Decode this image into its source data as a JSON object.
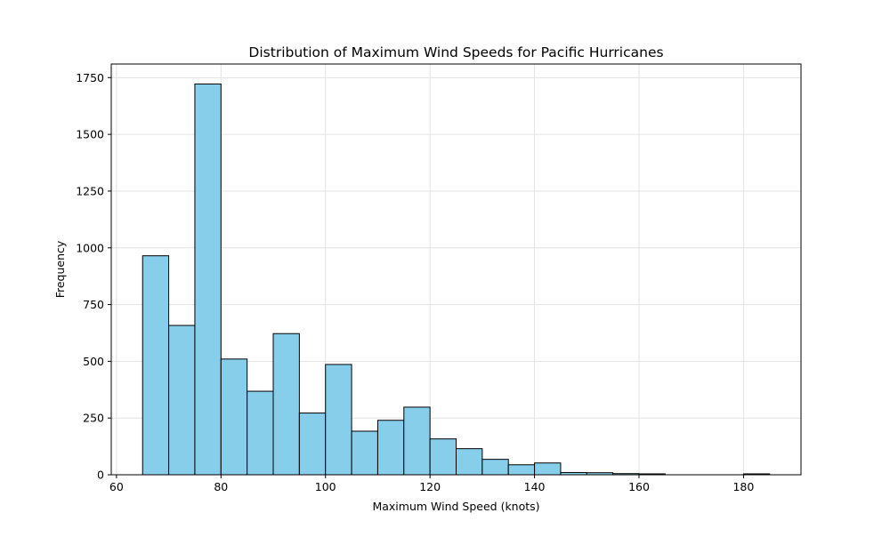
{
  "chart_data": {
    "type": "bar",
    "title": "Distribution of Maximum Wind Speeds for Pacific Hurricanes",
    "xlabel": "Maximum Wind Speed (knots)",
    "ylabel": "Frequency",
    "xlim": [
      59,
      191
    ],
    "ylim": [
      0,
      1810
    ],
    "xticks": [
      60,
      80,
      100,
      120,
      140,
      160,
      180
    ],
    "yticks": [
      0,
      250,
      500,
      750,
      1000,
      1250,
      1500,
      1750
    ],
    "grid": true,
    "bar_color": "#87ceeb",
    "edge_color": "#000000",
    "bins": [
      {
        "x0": 65,
        "x1": 70,
        "value": 965
      },
      {
        "x0": 70,
        "x1": 75,
        "value": 658
      },
      {
        "x0": 75,
        "x1": 80,
        "value": 1722
      },
      {
        "x0": 80,
        "x1": 85,
        "value": 510
      },
      {
        "x0": 85,
        "x1": 90,
        "value": 368
      },
      {
        "x0": 90,
        "x1": 95,
        "value": 622
      },
      {
        "x0": 95,
        "x1": 100,
        "value": 272
      },
      {
        "x0": 100,
        "x1": 105,
        "value": 486
      },
      {
        "x0": 105,
        "x1": 110,
        "value": 192
      },
      {
        "x0": 110,
        "x1": 115,
        "value": 240
      },
      {
        "x0": 115,
        "x1": 120,
        "value": 298
      },
      {
        "x0": 120,
        "x1": 125,
        "value": 158
      },
      {
        "x0": 125,
        "x1": 130,
        "value": 115
      },
      {
        "x0": 130,
        "x1": 135,
        "value": 68
      },
      {
        "x0": 135,
        "x1": 140,
        "value": 44
      },
      {
        "x0": 140,
        "x1": 145,
        "value": 52
      },
      {
        "x0": 145,
        "x1": 150,
        "value": 10
      },
      {
        "x0": 150,
        "x1": 155,
        "value": 9
      },
      {
        "x0": 155,
        "x1": 160,
        "value": 5
      },
      {
        "x0": 160,
        "x1": 165,
        "value": 4
      },
      {
        "x0": 165,
        "x1": 170,
        "value": 0
      },
      {
        "x0": 170,
        "x1": 175,
        "value": 0
      },
      {
        "x0": 175,
        "x1": 180,
        "value": 0
      },
      {
        "x0": 180,
        "x1": 185,
        "value": 4
      }
    ]
  }
}
